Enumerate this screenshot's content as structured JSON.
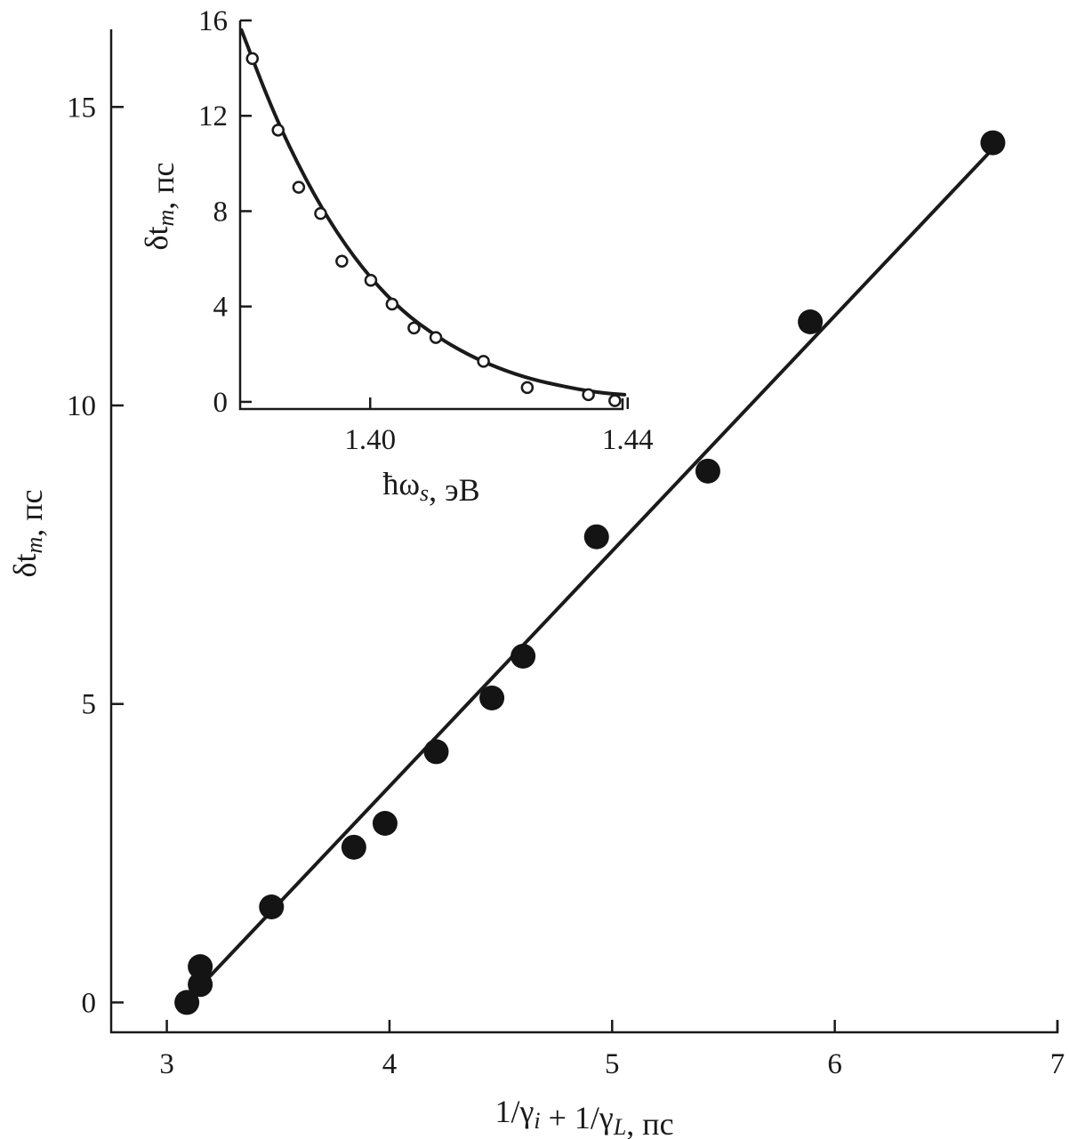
{
  "chart_data": [
    {
      "type": "scatter",
      "xlabel": "1/γi + 1/γL, пс",
      "ylabel": "δtm, пс",
      "xlim": [
        2.75,
        7
      ],
      "ylim": [
        -0.5,
        16.3
      ],
      "x_ticks": [
        "3",
        "4",
        "5",
        "6",
        "7"
      ],
      "y_ticks": [
        "0",
        "5",
        "10",
        "15"
      ],
      "series": [
        {
          "points": [
            {
              "x": 3.09,
              "y": 0.0
            },
            {
              "x": 3.15,
              "y": 0.3
            },
            {
              "x": 3.15,
              "y": 0.6
            },
            {
              "x": 3.47,
              "y": 1.6
            },
            {
              "x": 3.84,
              "y": 2.6
            },
            {
              "x": 3.98,
              "y": 3.0
            },
            {
              "x": 4.21,
              "y": 4.2
            },
            {
              "x": 4.46,
              "y": 5.1
            },
            {
              "x": 4.6,
              "y": 5.8
            },
            {
              "x": 4.93,
              "y": 7.8
            },
            {
              "x": 5.43,
              "y": 8.9
            },
            {
              "x": 5.89,
              "y": 11.4
            },
            {
              "x": 6.71,
              "y": 14.4
            }
          ]
        }
      ],
      "fit_line": {
        "x": [
          3.12,
          6.71
        ],
        "y": [
          0.15,
          14.3
        ]
      }
    },
    {
      "type": "scatter",
      "xlabel": "ħωs, эВ",
      "ylabel": "δtm, пс",
      "xlim": [
        1.3798,
        1.4392
      ],
      "ylim": [
        -0.3,
        16
      ],
      "x_ticks": [
        "1.40",
        "1.44"
      ],
      "y_ticks": [
        "0",
        "4",
        "8",
        "12",
        "16"
      ],
      "series": [
        {
          "points": [
            {
              "x": 1.3817,
              "y": 14.4
            },
            {
              "x": 1.3857,
              "y": 11.4
            },
            {
              "x": 1.3889,
              "y": 9.0
            },
            {
              "x": 1.3923,
              "y": 7.9
            },
            {
              "x": 1.3956,
              "y": 5.9
            },
            {
              "x": 1.4001,
              "y": 5.1
            },
            {
              "x": 1.4034,
              "y": 4.1
            },
            {
              "x": 1.4068,
              "y": 3.1
            },
            {
              "x": 1.4102,
              "y": 2.7
            },
            {
              "x": 1.4176,
              "y": 1.7
            },
            {
              "x": 1.4244,
              "y": 0.6
            },
            {
              "x": 1.4339,
              "y": 0.3
            },
            {
              "x": 1.438,
              "y": 0.05
            }
          ]
        }
      ],
      "fit_curve": {
        "x": [
          1.38,
          1.385,
          1.39,
          1.395,
          1.4,
          1.405,
          1.41,
          1.415,
          1.42,
          1.425,
          1.43,
          1.435,
          1.4395
        ],
        "y": [
          15.6,
          12.1,
          9.3,
          7.0,
          5.2,
          3.8,
          2.8,
          2.0,
          1.4,
          0.95,
          0.65,
          0.4,
          0.3
        ]
      }
    }
  ]
}
